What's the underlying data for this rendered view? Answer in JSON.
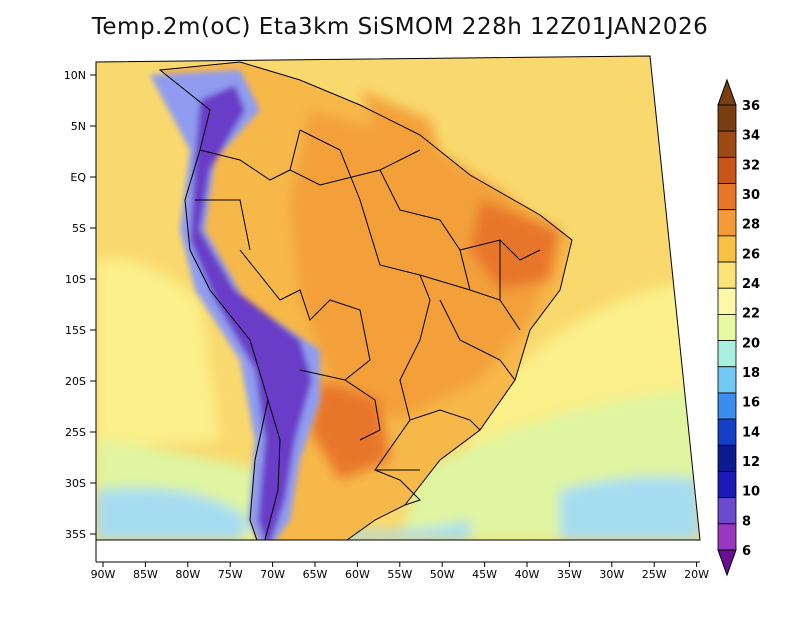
{
  "title": "Temp.2m(oC) Eta3km SiSMOM 228h 12Z01JAN2026",
  "lat_ticks": [
    "10N",
    "5N",
    "EQ",
    "5S",
    "10S",
    "15S",
    "20S",
    "25S",
    "30S",
    "35S"
  ],
  "lon_ticks": [
    "90W",
    "85W",
    "80W",
    "75W",
    "70W",
    "65W",
    "60W",
    "55W",
    "50W",
    "45W",
    "40W",
    "35W",
    "30W",
    "25W",
    "20W"
  ],
  "colorbar": {
    "labels": [
      "36",
      "34",
      "32",
      "30",
      "28",
      "26",
      "24",
      "22",
      "20",
      "18",
      "16",
      "14",
      "12",
      "10",
      "8",
      "6"
    ],
    "colors": [
      "#f3a3a3",
      "#7a3e10",
      "#9e4a12",
      "#c8561c",
      "#e8762a",
      "#f49a38",
      "#f7c146",
      "#fbe37a",
      "#fdf7a8",
      "#e8f8a0",
      "#a8f0e0",
      "#74c8f4",
      "#3c8cf0",
      "#1440c8",
      "#0c1c90",
      "#1a1ab8",
      "#6c4ad0",
      "#9838c0",
      "#6a0e96"
    ]
  },
  "palette": {
    "ocean_warm": "#f9d96e",
    "ocean_cool": "#fbf08a",
    "ocean_cold": "#dff5a0",
    "ocean_coldest": "#a6dcf2",
    "land_hot": "#f3a03a",
    "land_warm": "#f7b84a",
    "land_hottest": "#e8762a",
    "andes_cold": "#6a3cc8",
    "andes_mid": "#8f9cf0",
    "border": "#000000"
  }
}
